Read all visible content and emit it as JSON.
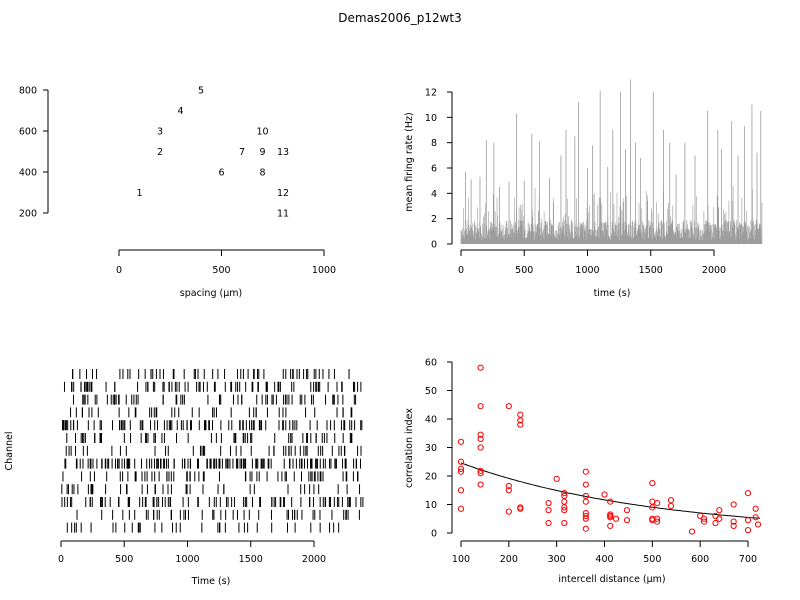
{
  "title": "Demas2006_p12wt3",
  "chart_data": [
    {
      "type": "scatter",
      "panel": "electrode-layout",
      "xlabel": "spacing (µm)",
      "ylabel": "",
      "xlim": [
        0,
        1000
      ],
      "ylim": [
        200,
        800
      ],
      "xticks": [
        "0",
        "500",
        "1000"
      ],
      "yticks": [
        "200",
        "400",
        "600",
        "800"
      ],
      "points": [
        {
          "label": "1",
          "x": 100,
          "y": 300
        },
        {
          "label": "2",
          "x": 200,
          "y": 500
        },
        {
          "label": "3",
          "x": 200,
          "y": 600
        },
        {
          "label": "4",
          "x": 300,
          "y": 700
        },
        {
          "label": "5",
          "x": 400,
          "y": 800
        },
        {
          "label": "6",
          "x": 500,
          "y": 400
        },
        {
          "label": "7",
          "x": 600,
          "y": 500
        },
        {
          "label": "8",
          "x": 700,
          "y": 400
        },
        {
          "label": "9",
          "x": 700,
          "y": 500
        },
        {
          "label": "10",
          "x": 700,
          "y": 600
        },
        {
          "label": "11",
          "x": 800,
          "y": 200
        },
        {
          "label": "12",
          "x": 800,
          "y": 300
        },
        {
          "label": "13",
          "x": 800,
          "y": 500
        }
      ]
    },
    {
      "type": "bar",
      "panel": "mean-firing-rate",
      "xlabel": "time (s)",
      "ylabel": "mean firing rate (Hz)",
      "xlim": [
        0,
        2400
      ],
      "ylim": [
        0,
        12
      ],
      "xticks": [
        "0",
        "500",
        "1000",
        "1500",
        "2000"
      ],
      "yticks": [
        "0",
        "2",
        "4",
        "6",
        "8",
        "10",
        "12"
      ],
      "peaks": [
        {
          "x": 35,
          "y": 5.7
        },
        {
          "x": 80,
          "y": 5.1
        },
        {
          "x": 150,
          "y": 5.3
        },
        {
          "x": 200,
          "y": 8.2
        },
        {
          "x": 260,
          "y": 8.0
        },
        {
          "x": 305,
          "y": 4.5
        },
        {
          "x": 380,
          "y": 4.9
        },
        {
          "x": 440,
          "y": 10.3
        },
        {
          "x": 500,
          "y": 5.0
        },
        {
          "x": 560,
          "y": 8.7
        },
        {
          "x": 620,
          "y": 8.1
        },
        {
          "x": 700,
          "y": 5.2
        },
        {
          "x": 790,
          "y": 7.0
        },
        {
          "x": 830,
          "y": 9.0
        },
        {
          "x": 900,
          "y": 8.5
        },
        {
          "x": 930,
          "y": 11.2
        },
        {
          "x": 1000,
          "y": 6.0
        },
        {
          "x": 1040,
          "y": 7.8
        },
        {
          "x": 1100,
          "y": 12.1
        },
        {
          "x": 1160,
          "y": 6.1
        },
        {
          "x": 1200,
          "y": 9.0
        },
        {
          "x": 1260,
          "y": 12.0
        },
        {
          "x": 1300,
          "y": 7.5
        },
        {
          "x": 1340,
          "y": 13.0
        },
        {
          "x": 1380,
          "y": 8.0
        },
        {
          "x": 1420,
          "y": 6.8
        },
        {
          "x": 1520,
          "y": 12.0
        },
        {
          "x": 1600,
          "y": 9.0
        },
        {
          "x": 1650,
          "y": 8.0
        },
        {
          "x": 1700,
          "y": 5.5
        },
        {
          "x": 1770,
          "y": 8.0
        },
        {
          "x": 1850,
          "y": 7.0
        },
        {
          "x": 1950,
          "y": 10.5
        },
        {
          "x": 2030,
          "y": 9.0
        },
        {
          "x": 2060,
          "y": 7.5
        },
        {
          "x": 2140,
          "y": 9.7
        },
        {
          "x": 2190,
          "y": 7.0
        },
        {
          "x": 2240,
          "y": 9.3
        },
        {
          "x": 2300,
          "y": 11.0
        },
        {
          "x": 2340,
          "y": 7.2
        },
        {
          "x": 2370,
          "y": 10.5
        }
      ],
      "baseline": 1.0
    },
    {
      "type": "raster",
      "panel": "spike-raster",
      "xlabel": "Time (s)",
      "ylabel": "Channel",
      "xlim": [
        0,
        2400
      ],
      "xticks": [
        "0",
        "500",
        "1000",
        "1500",
        "2000"
      ],
      "channels": 13
    },
    {
      "type": "scatter",
      "panel": "correlation-index",
      "xlabel": "intercell distance (µm)",
      "ylabel": "correlation index",
      "xlim": [
        100,
        720
      ],
      "ylim": [
        0,
        60
      ],
      "xticks": [
        "100",
        "200",
        "300",
        "400",
        "500",
        "600",
        "700"
      ],
      "yticks": [
        "0",
        "10",
        "20",
        "30",
        "40",
        "50",
        "60"
      ],
      "points": [
        [
          100,
          32
        ],
        [
          100,
          25
        ],
        [
          100,
          22.5
        ],
        [
          100,
          21.5
        ],
        [
          100,
          15
        ],
        [
          100,
          8.5
        ],
        [
          141,
          58
        ],
        [
          141,
          44.5
        ],
        [
          141,
          34.5
        ],
        [
          141,
          33
        ],
        [
          141,
          30
        ],
        [
          141,
          21.8
        ],
        [
          141,
          21
        ],
        [
          141,
          17
        ],
        [
          200,
          44.5
        ],
        [
          200,
          16.5
        ],
        [
          200,
          15
        ],
        [
          200,
          7.5
        ],
        [
          224,
          41.5
        ],
        [
          224,
          39.5
        ],
        [
          224,
          38
        ],
        [
          224,
          9
        ],
        [
          224,
          8.5
        ],
        [
          283,
          10.5
        ],
        [
          283,
          8
        ],
        [
          283,
          3.5
        ],
        [
          300,
          19
        ],
        [
          316,
          14
        ],
        [
          316,
          13
        ],
        [
          316,
          11
        ],
        [
          316,
          9
        ],
        [
          316,
          8
        ],
        [
          316,
          3.5
        ],
        [
          361,
          21.5
        ],
        [
          361,
          17
        ],
        [
          361,
          13
        ],
        [
          361,
          11
        ],
        [
          361,
          7
        ],
        [
          361,
          6
        ],
        [
          361,
          5
        ],
        [
          361,
          1.5
        ],
        [
          400,
          13.5
        ],
        [
          412,
          11
        ],
        [
          412,
          6.5
        ],
        [
          412,
          6
        ],
        [
          412,
          5.5
        ],
        [
          412,
          2.5
        ],
        [
          424,
          5
        ],
        [
          447,
          8
        ],
        [
          447,
          4.5
        ],
        [
          500,
          17.5
        ],
        [
          500,
          11
        ],
        [
          500,
          9
        ],
        [
          500,
          5
        ],
        [
          500,
          4.5
        ],
        [
          510,
          10.5
        ],
        [
          510,
          5
        ],
        [
          510,
          4
        ],
        [
          539,
          11.5
        ],
        [
          539,
          9.5
        ],
        [
          583,
          0.5
        ],
        [
          600,
          6
        ],
        [
          608,
          5
        ],
        [
          608,
          4
        ],
        [
          632,
          6
        ],
        [
          632,
          3.5
        ],
        [
          640,
          8
        ],
        [
          640,
          5
        ],
        [
          670,
          10
        ],
        [
          670,
          4
        ],
        [
          670,
          2.5
        ],
        [
          700,
          14
        ],
        [
          700,
          4.5
        ],
        [
          700,
          1
        ],
        [
          716,
          8.5
        ],
        [
          716,
          5.5
        ],
        [
          721,
          3
        ]
      ],
      "fit": {
        "a": 24.6,
        "b": 0.0025,
        "x0": 100
      }
    }
  ]
}
